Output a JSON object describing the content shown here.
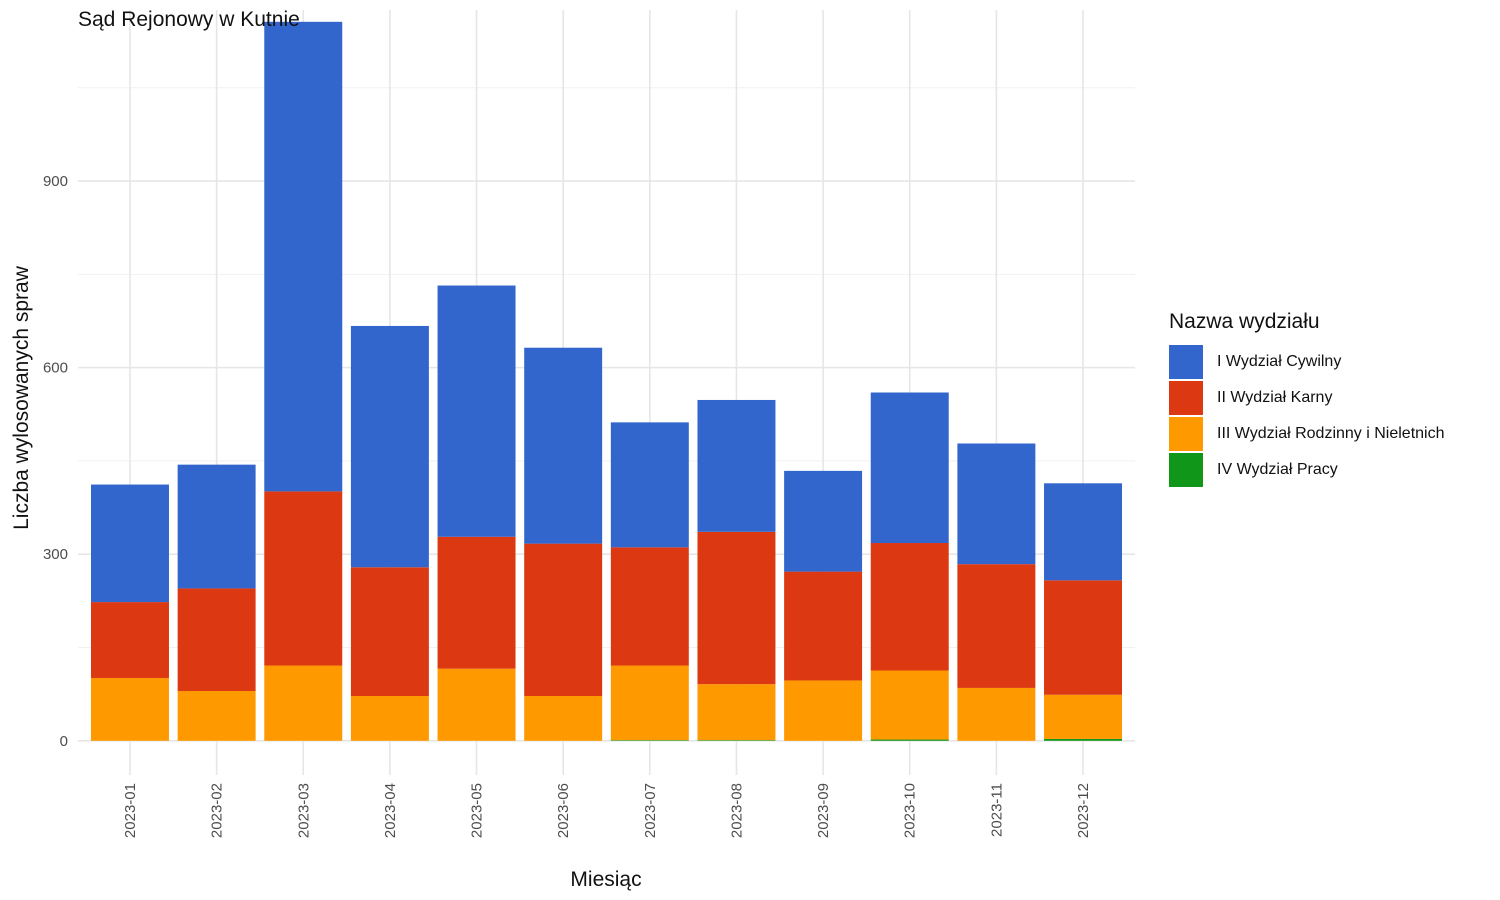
{
  "chart_data": {
    "type": "bar",
    "stacked": true,
    "title": "Sąd Rejonowy w Kutnie",
    "xlabel": "Miesiąc",
    "ylabel": "Liczba wylosowanych spraw",
    "ylim": [
      -55,
      1175
    ],
    "yticks": [
      0,
      300,
      600,
      900
    ],
    "grid": true,
    "legend_title": "Nazwa wydziału",
    "legend_position": "right",
    "categories": [
      "2023-01",
      "2023-02",
      "2023-03",
      "2023-04",
      "2023-05",
      "2023-06",
      "2023-07",
      "2023-08",
      "2023-09",
      "2023-10",
      "2023-11",
      "2023-12"
    ],
    "series": [
      {
        "name": "IV Wydział Pracy",
        "color": "#109618",
        "values": [
          0,
          0,
          0,
          0,
          0,
          0,
          1,
          1,
          0,
          2,
          0,
          3
        ]
      },
      {
        "name": "III Wydział Rodzinny i Nieletnich",
        "color": "#FF9900",
        "values": [
          101,
          80,
          121,
          72,
          116,
          72,
          120,
          90,
          97,
          111,
          85,
          71
        ]
      },
      {
        "name": "II Wydział Karny",
        "color": "#DC3912",
        "values": [
          122,
          165,
          280,
          207,
          212,
          245,
          190,
          245,
          175,
          205,
          199,
          184
        ]
      },
      {
        "name": "I Wydział Cywilny",
        "color": "#3366CC",
        "values": [
          189,
          199,
          755,
          388,
          404,
          315,
          201,
          212,
          162,
          242,
          194,
          156
        ]
      }
    ]
  }
}
